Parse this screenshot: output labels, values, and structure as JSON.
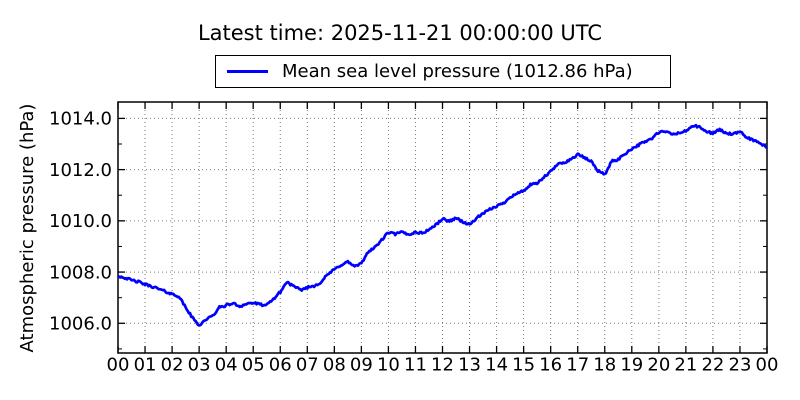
{
  "figure": {
    "title": "Latest time: 2025-11-21 00:00:00 UTC",
    "legend": {
      "label": "Mean sea level pressure (1012.86 hPa)",
      "line_color": "#0000ff",
      "position": "upper center, outside plot"
    },
    "colors": {
      "line": "#0000ff",
      "grid": "#777777",
      "frame": "#000000",
      "background": "#ffffff",
      "text": "#000000"
    }
  },
  "chart_data": {
    "type": "line",
    "title": "Latest time: 2025-11-21 00:00:00 UTC",
    "xlabel": "",
    "ylabel": "Atmospheric pressure (hPa)",
    "xlim": [
      0,
      24
    ],
    "ylim": [
      1004.84,
      1014.64
    ],
    "grid": true,
    "grid_style": "dotted",
    "x_tick_labels": [
      "00",
      "01",
      "02",
      "03",
      "04",
      "05",
      "06",
      "07",
      "08",
      "09",
      "10",
      "11",
      "12",
      "13",
      "14",
      "15",
      "16",
      "17",
      "18",
      "19",
      "20",
      "21",
      "22",
      "23",
      "00"
    ],
    "y_ticks": [
      1006,
      1008,
      1010,
      1012,
      1014
    ],
    "y_tick_labels": [
      "1006.0",
      "1008.0",
      "1010.0",
      "1012.0",
      "1014.0"
    ],
    "y_minor_ticks": [
      1005,
      1007,
      1009,
      1011,
      1013
    ],
    "series": [
      {
        "name": "Mean sea level pressure (1012.86 hPa)",
        "color": "#0000ff",
        "latest_value_hpa": 1012.86,
        "x": [
          0,
          0.25,
          0.5,
          0.75,
          1,
          1.25,
          1.5,
          1.75,
          2,
          2.25,
          2.5,
          2.75,
          3,
          3.25,
          3.5,
          3.75,
          4,
          4.25,
          4.5,
          4.75,
          5,
          5.25,
          5.5,
          5.75,
          6,
          6.25,
          6.5,
          6.75,
          7,
          7.25,
          7.5,
          7.75,
          8,
          8.25,
          8.5,
          8.75,
          9,
          9.25,
          9.5,
          9.75,
          10,
          10.25,
          10.5,
          10.75,
          11,
          11.25,
          11.5,
          11.75,
          12,
          12.25,
          12.5,
          12.75,
          13,
          13.25,
          13.5,
          13.75,
          14,
          14.25,
          14.5,
          14.75,
          15,
          15.25,
          15.5,
          15.75,
          16,
          16.25,
          16.5,
          16.75,
          17,
          17.25,
          17.5,
          17.75,
          18,
          18.25,
          18.5,
          18.75,
          19,
          19.25,
          19.5,
          19.75,
          20,
          20.25,
          20.5,
          20.75,
          21,
          21.25,
          21.5,
          21.75,
          22,
          22.25,
          22.5,
          22.75,
          23,
          23.25,
          23.5,
          23.75,
          24
        ],
        "y": [
          1007.85,
          1007.78,
          1007.68,
          1007.62,
          1007.52,
          1007.44,
          1007.34,
          1007.24,
          1007.14,
          1007.05,
          1006.62,
          1006.22,
          1005.92,
          1006.15,
          1006.28,
          1006.62,
          1006.7,
          1006.78,
          1006.66,
          1006.76,
          1006.8,
          1006.73,
          1006.7,
          1006.95,
          1007.22,
          1007.62,
          1007.43,
          1007.3,
          1007.4,
          1007.46,
          1007.6,
          1007.9,
          1008.1,
          1008.28,
          1008.4,
          1008.22,
          1008.32,
          1008.8,
          1008.96,
          1009.25,
          1009.55,
          1009.48,
          1009.56,
          1009.46,
          1009.56,
          1009.52,
          1009.66,
          1009.84,
          1010.08,
          1009.98,
          1010.12,
          1009.96,
          1009.84,
          1010.1,
          1010.28,
          1010.44,
          1010.58,
          1010.68,
          1010.94,
          1011.06,
          1011.18,
          1011.4,
          1011.46,
          1011.7,
          1011.92,
          1012.2,
          1012.28,
          1012.4,
          1012.6,
          1012.46,
          1012.32,
          1011.96,
          1011.8,
          1012.32,
          1012.4,
          1012.62,
          1012.82,
          1012.96,
          1013.1,
          1013.22,
          1013.46,
          1013.48,
          1013.38,
          1013.43,
          1013.5,
          1013.72,
          1013.66,
          1013.48,
          1013.43,
          1013.56,
          1013.42,
          1013.38,
          1013.47,
          1013.26,
          1013.15,
          1013.02,
          1012.86
        ]
      }
    ]
  }
}
